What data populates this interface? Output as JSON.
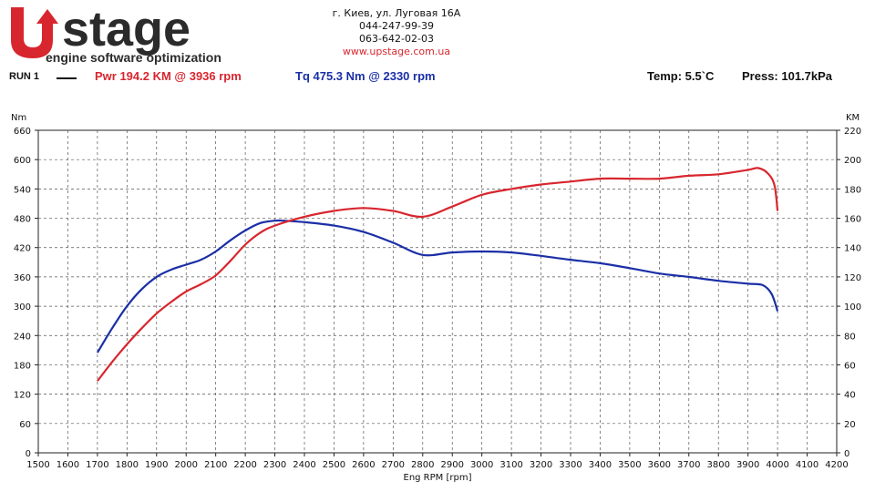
{
  "brand": {
    "name": "stage",
    "tagline": "engine software optimization",
    "colors": {
      "red": "#d8262e",
      "dark": "#2b2b2b"
    }
  },
  "contacts": {
    "address": "г. Киев, ул. Луговая 16А",
    "phone1": "044-247-99-39",
    "phone2": "063-642-02-03",
    "website": "www.upstage.com.ua"
  },
  "header": {
    "run": "RUN 1",
    "power": "Pwr  194.2 KM @ 3936 rpm",
    "torque": "Tq 475.3 Nm @ 2330 rpm",
    "temp": "Temp: 5.5`C",
    "press": "Press: 101.7kPa"
  },
  "chart_data": {
    "type": "line",
    "xlabel": "Eng RPM [rpm]",
    "ylabel_left": "Nm",
    "ylabel_right": "KM",
    "xlim": [
      1500,
      4200
    ],
    "ylim_left": [
      0,
      660
    ],
    "ylim_right": [
      0,
      220
    ],
    "grid": true,
    "x_ticks": [
      "1500",
      "1600",
      "1700",
      "1800",
      "1900",
      "2000",
      "2100",
      "2200",
      "2300",
      "2400",
      "2500",
      "2600",
      "2700",
      "2800",
      "2900",
      "3000",
      "3100",
      "3200",
      "3300",
      "3400",
      "3500",
      "3600",
      "3700",
      "3800",
      "3900",
      "4000",
      "4100",
      "4200"
    ],
    "y_ticks_left": [
      "0",
      "60",
      "120",
      "180",
      "240",
      "300",
      "360",
      "420",
      "480",
      "540",
      "600",
      "660"
    ],
    "y_ticks_right": [
      "0",
      "20",
      "40",
      "60",
      "80",
      "100",
      "120",
      "140",
      "160",
      "180",
      "200",
      "220"
    ],
    "series": [
      {
        "name": "Tq",
        "axis": "left",
        "color": "#1b2fa6",
        "x": [
          1700,
          1750,
          1800,
          1850,
          1900,
          1950,
          2000,
          2050,
          2100,
          2150,
          2200,
          2250,
          2300,
          2330,
          2400,
          2500,
          2600,
          2700,
          2800,
          2900,
          3000,
          3100,
          3200,
          3300,
          3400,
          3500,
          3600,
          3700,
          3800,
          3900,
          3950,
          3980,
          4000
        ],
        "y": [
          205,
          255,
          300,
          335,
          360,
          375,
          385,
          395,
          412,
          435,
          455,
          470,
          475,
          475,
          472,
          465,
          452,
          430,
          405,
          410,
          412,
          410,
          403,
          395,
          388,
          378,
          367,
          360,
          352,
          346,
          343,
          325,
          290
        ]
      },
      {
        "name": "Pwr",
        "axis": "right",
        "color": "#d8262e",
        "x": [
          1700,
          1750,
          1800,
          1850,
          1900,
          1950,
          2000,
          2050,
          2100,
          2150,
          2200,
          2250,
          2300,
          2400,
          2500,
          2600,
          2700,
          2800,
          2900,
          3000,
          3100,
          3200,
          3300,
          3400,
          3500,
          3600,
          3700,
          3800,
          3900,
          3936,
          3970,
          3990,
          4000
        ],
        "y": [
          49,
          62,
          74,
          85,
          95,
          103,
          110,
          115,
          121,
          131,
          142,
          150,
          155,
          161,
          165,
          167,
          165,
          161,
          168,
          176,
          180,
          183,
          185,
          187,
          187,
          187,
          189,
          190,
          193,
          194.2,
          190,
          182,
          165
        ]
      }
    ]
  }
}
